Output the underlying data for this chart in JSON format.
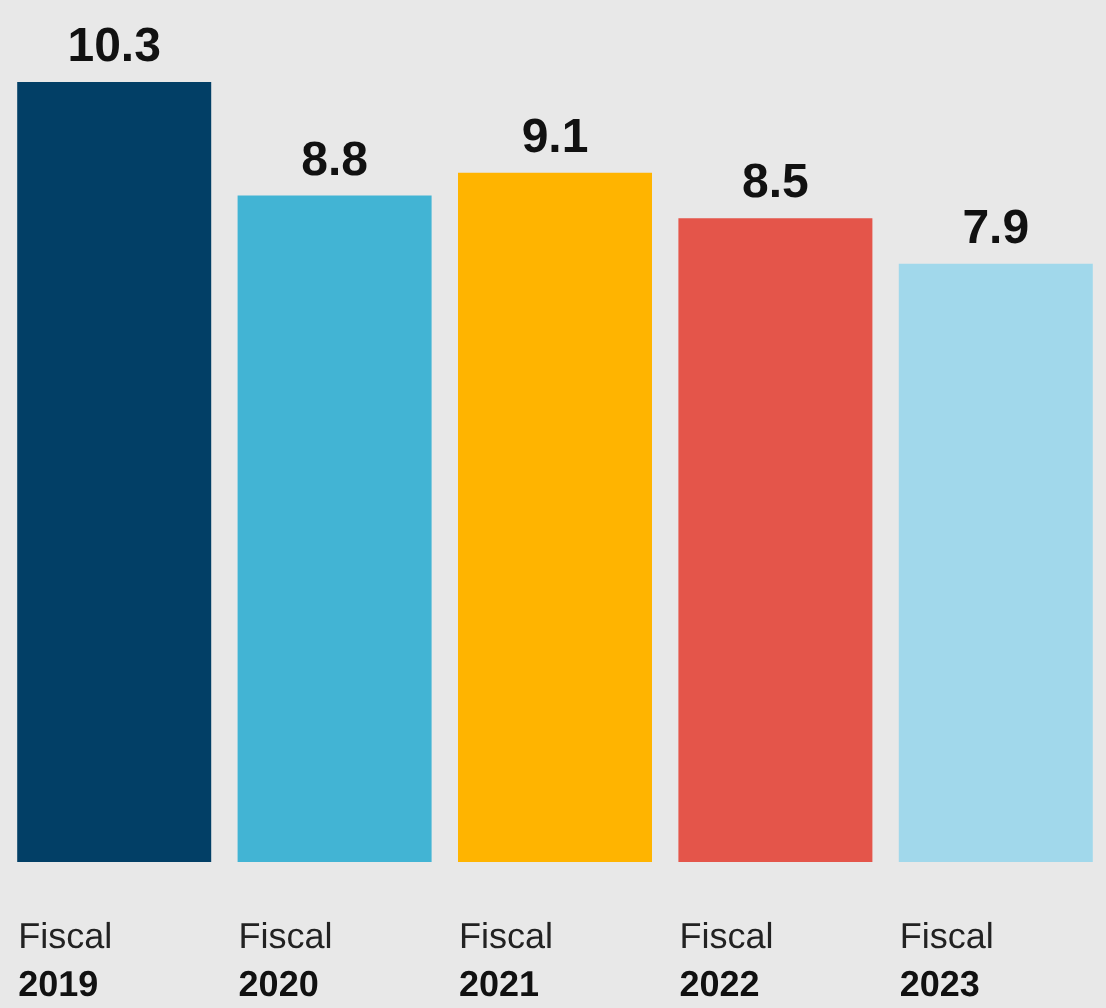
{
  "chart_data": {
    "type": "bar",
    "categories": [
      "Fiscal 2019",
      "Fiscal 2020",
      "Fiscal 2021",
      "Fiscal 2022",
      "Fiscal 2023"
    ],
    "values": [
      10.3,
      8.8,
      9.1,
      8.5,
      7.9
    ],
    "colors": [
      "#023f66",
      "#42b4d4",
      "#ffb400",
      "#e4554a",
      "#a1d8eb"
    ],
    "data_labels": true
  }
}
